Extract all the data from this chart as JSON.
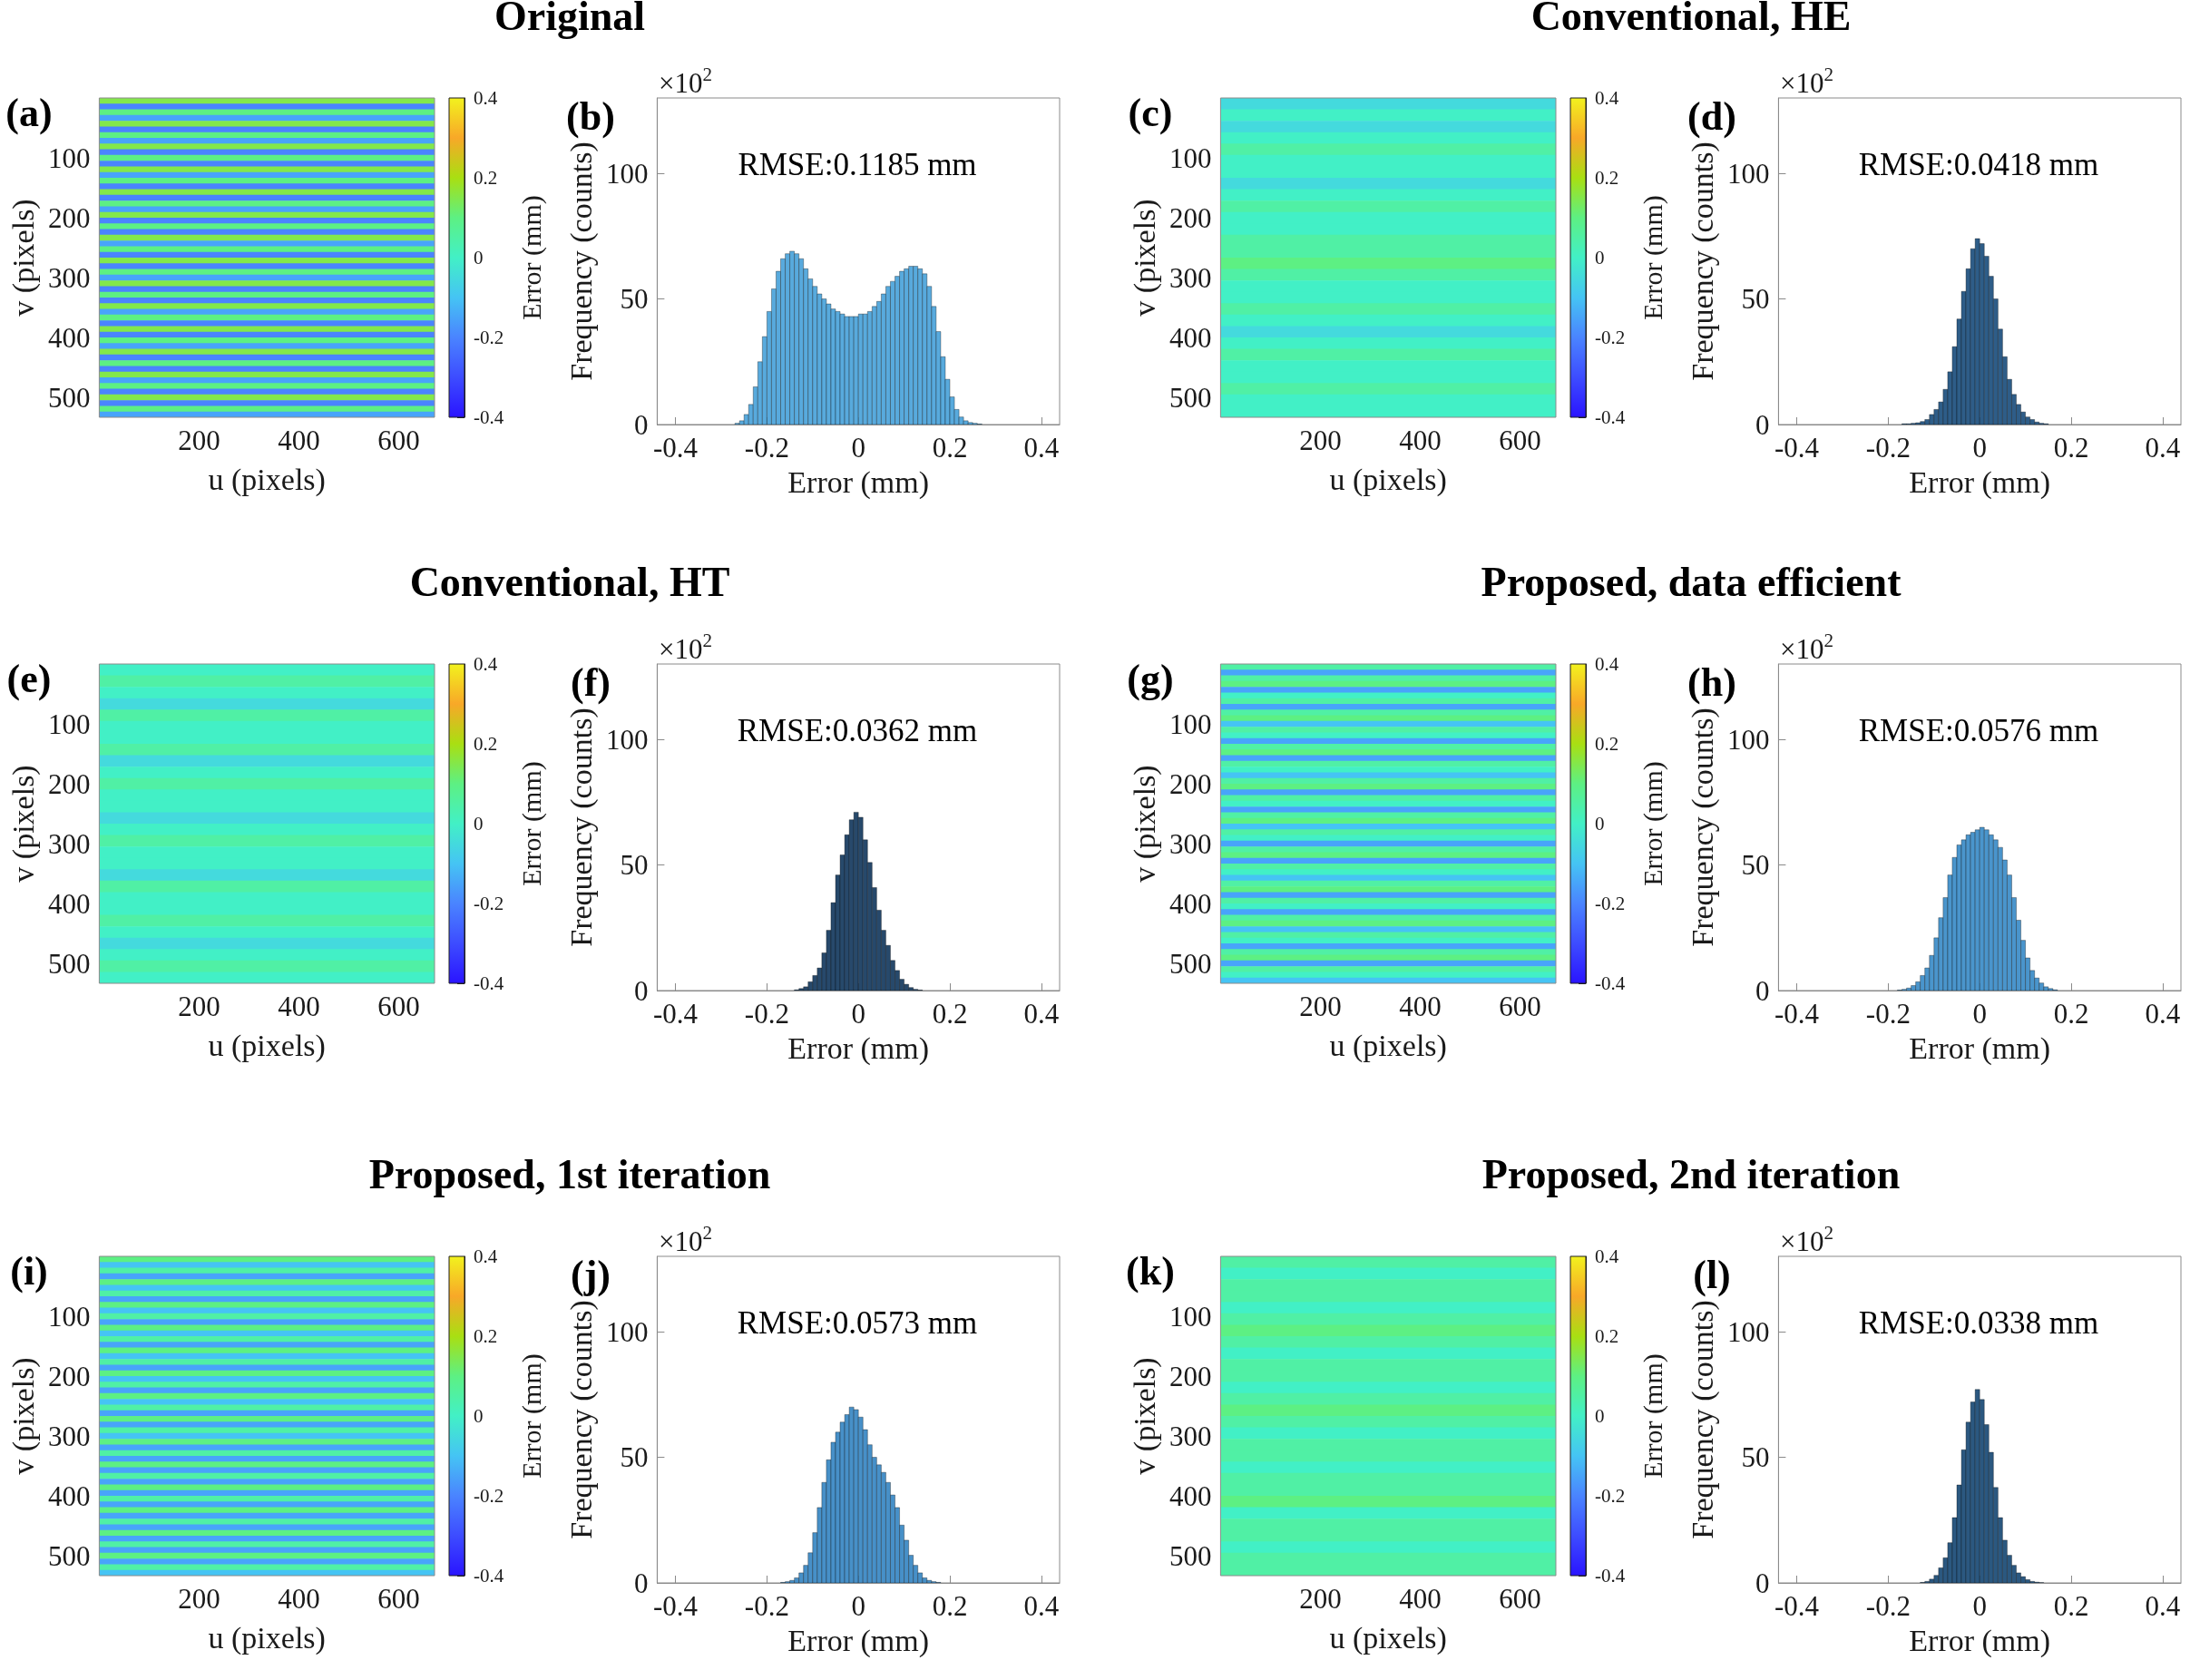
{
  "chart_data": [
    {
      "type": "heatmap",
      "xlabel": "u (pixels)",
      "ylabel": "v (pixels)",
      "clabel": "Error (mm)",
      "xlim": [
        0,
        672
      ],
      "ylim": [
        532,
        0
      ],
      "xticks": [
        200,
        400,
        600
      ],
      "yticks": [
        100,
        200,
        300,
        400,
        500
      ],
      "clim": [
        -0.4,
        0.4
      ],
      "cticks": [
        -0.4,
        -0.2,
        0,
        0.2,
        0.4
      ],
      "annotations": [
        "(a)"
      ],
      "cells": [
        [
          0.15
        ],
        [
          -0.2
        ],
        [
          0.1
        ],
        [
          -0.15
        ],
        [
          0.15
        ],
        [
          -0.2
        ],
        [
          0.1
        ],
        [
          -0.15
        ],
        [
          0.15
        ],
        [
          -0.2
        ],
        [
          0.1
        ],
        [
          -0.2
        ],
        [
          0.15
        ],
        [
          -0.15
        ],
        [
          0.1
        ],
        [
          -0.2
        ],
        [
          0.15
        ],
        [
          -0.2
        ],
        [
          0.1
        ],
        [
          -0.15
        ],
        [
          0.15
        ],
        [
          -0.2
        ],
        [
          0.1
        ],
        [
          -0.2
        ],
        [
          0.15
        ],
        [
          -0.15
        ],
        [
          0.1
        ],
        [
          -0.2
        ],
        [
          0.15
        ],
        [
          -0.2
        ],
        [
          0.1
        ],
        [
          -0.15
        ],
        [
          0.15
        ],
        [
          -0.2
        ],
        [
          0.1
        ],
        [
          -0.2
        ],
        [
          0.15
        ],
        [
          -0.15
        ],
        [
          0.1
        ],
        [
          -0.2
        ],
        [
          0.15
        ],
        [
          -0.2
        ],
        [
          0.1
        ],
        [
          -0.15
        ],
        [
          0.15
        ],
        [
          -0.2
        ],
        [
          0.1
        ],
        [
          -0.2
        ],
        [
          0.15
        ],
        [
          -0.15
        ],
        [
          0.1
        ],
        [
          -0.2
        ],
        [
          0.15
        ],
        [
          -0.2
        ],
        [
          0.1
        ],
        [
          -0.15
        ]
      ]
    },
    {
      "type": "histogram",
      "title": "Original",
      "xlabel": "Error (mm)",
      "ylabel": "Frequency (counts)",
      "color": "#58aadd",
      "xlim": [
        -0.44,
        0.44
      ],
      "xticks": [
        -0.4,
        -0.2,
        0,
        0.2,
        0.4
      ],
      "ylim": [
        0,
        130
      ],
      "yticks": [
        0,
        50,
        100
      ],
      "annotations": [
        "(b)",
        "×10$^{2}$",
        "RMSE:0.1185 mm"
      ],
      "bins": [
        -0.27,
        -0.26,
        -0.25,
        -0.24,
        -0.23,
        -0.22,
        -0.21,
        -0.2,
        -0.19,
        -0.18,
        -0.17,
        -0.16,
        -0.15,
        -0.14,
        -0.13,
        -0.12,
        -0.11,
        -0.1,
        -0.09,
        -0.08,
        -0.07,
        -0.06,
        -0.05,
        -0.04,
        -0.03,
        -0.02,
        -0.01,
        0,
        0.01,
        0.02,
        0.03,
        0.04,
        0.05,
        0.06,
        0.07,
        0.08,
        0.09,
        0.1,
        0.11,
        0.12,
        0.13,
        0.14,
        0.15,
        0.16,
        0.17,
        0.18,
        0.19,
        0.2,
        0.21,
        0.22,
        0.23,
        0.24,
        0.25,
        0.26,
        0.27
      ],
      "values": [
        0.5,
        1.5,
        4,
        8,
        15,
        25,
        35,
        45,
        54,
        61,
        66,
        68,
        69,
        68,
        66,
        62,
        58,
        55,
        52,
        50,
        48,
        46,
        45,
        44,
        43,
        43,
        43,
        44,
        44,
        45,
        47,
        49,
        52,
        55,
        57,
        59,
        61,
        62,
        63,
        63,
        62,
        60,
        55,
        47,
        37,
        27,
        18,
        11,
        6,
        3,
        1.5,
        0.8,
        0.5,
        0.2
      ]
    },
    {
      "type": "heatmap",
      "xlabel": "u (pixels)",
      "ylabel": "v (pixels)",
      "clabel": "Error (mm)",
      "xlim": [
        0,
        672
      ],
      "ylim": [
        532,
        0
      ],
      "xticks": [
        200,
        400,
        600
      ],
      "yticks": [
        100,
        200,
        300,
        400,
        500
      ],
      "clim": [
        -0.4,
        0.4
      ],
      "cticks": [
        -0.4,
        -0.2,
        0,
        0.2,
        0.4
      ],
      "annotations": [
        "(c)"
      ],
      "cells": [
        [
          -0.05
        ],
        [
          0
        ],
        [
          -0.05
        ],
        [
          0
        ],
        [
          0.05
        ],
        [
          0
        ],
        [
          0
        ],
        [
          -0.05
        ],
        [
          0
        ],
        [
          0.05
        ],
        [
          0
        ],
        [
          0
        ],
        [
          0.05
        ],
        [
          0.05
        ],
        [
          0.1
        ],
        [
          0.05
        ],
        [
          0
        ],
        [
          0
        ],
        [
          0.05
        ],
        [
          0
        ],
        [
          -0.05
        ],
        [
          0
        ],
        [
          0.05
        ],
        [
          0
        ],
        [
          0
        ],
        [
          0.05
        ],
        [
          0
        ],
        [
          0
        ]
      ]
    },
    {
      "type": "histogram",
      "title": "Conventional, HE",
      "xlabel": "Error (mm)",
      "ylabel": "Frequency (counts)",
      "color": "#2e5d88",
      "xlim": [
        -0.44,
        0.44
      ],
      "xticks": [
        -0.4,
        -0.2,
        0,
        0.2,
        0.4
      ],
      "ylim": [
        0,
        130
      ],
      "yticks": [
        0,
        50,
        100
      ],
      "annotations": [
        "(d)",
        "×10$^{2}$",
        "RMSE:0.0418 mm"
      ],
      "bins": [
        -0.17,
        -0.16,
        -0.15,
        -0.14,
        -0.13,
        -0.12,
        -0.11,
        -0.1,
        -0.09,
        -0.08,
        -0.07,
        -0.06,
        -0.05,
        -0.04,
        -0.03,
        -0.02,
        -0.01,
        0,
        0.01,
        0.02,
        0.03,
        0.04,
        0.05,
        0.06,
        0.07,
        0.08,
        0.09,
        0.1,
        0.11,
        0.12,
        0.13,
        0.14,
        0.15
      ],
      "values": [
        0.3,
        0.3,
        0.5,
        0.7,
        1.2,
        2,
        4,
        6,
        9,
        14,
        21,
        31,
        42,
        53,
        62,
        70,
        74,
        72,
        67,
        59,
        50,
        38,
        27,
        18,
        12,
        8,
        5,
        3,
        2,
        1,
        0.5,
        0.3
      ]
    },
    {
      "type": "heatmap",
      "xlabel": "u (pixels)",
      "ylabel": "v (pixels)",
      "clabel": "Error (mm)",
      "xlim": [
        0,
        672
      ],
      "ylim": [
        532,
        0
      ],
      "xticks": [
        200,
        400,
        600
      ],
      "yticks": [
        100,
        200,
        300,
        400,
        500
      ],
      "clim": [
        -0.4,
        0.4
      ],
      "cticks": [
        -0.4,
        -0.2,
        0,
        0.2,
        0.4
      ],
      "annotations": [
        "(e)"
      ],
      "cells": [
        [
          0
        ],
        [
          0.05
        ],
        [
          0
        ],
        [
          -0.05
        ],
        [
          0.05
        ],
        [
          0
        ],
        [
          0
        ],
        [
          0.05
        ],
        [
          -0.05
        ],
        [
          0
        ],
        [
          0.05
        ],
        [
          0
        ],
        [
          0
        ],
        [
          -0.05
        ],
        [
          0
        ],
        [
          0.05
        ],
        [
          0
        ],
        [
          0
        ],
        [
          -0.05
        ],
        [
          0.05
        ],
        [
          0
        ],
        [
          0
        ],
        [
          0.05
        ],
        [
          0
        ],
        [
          -0.05
        ],
        [
          0
        ],
        [
          0.05
        ],
        [
          0
        ]
      ]
    },
    {
      "type": "histogram",
      "title": "Conventional, HT",
      "xlabel": "Error (mm)",
      "ylabel": "Frequency (counts)",
      "color": "#27496b",
      "xlim": [
        -0.44,
        0.44
      ],
      "xticks": [
        -0.4,
        -0.2,
        0,
        0.2,
        0.4
      ],
      "ylim": [
        0,
        130
      ],
      "yticks": [
        0,
        50,
        100
      ],
      "annotations": [
        "(f)",
        "×10$^{2}$",
        "RMSE:0.0362 mm"
      ],
      "bins": [
        -0.14,
        -0.13,
        -0.12,
        -0.11,
        -0.1,
        -0.09,
        -0.08,
        -0.07,
        -0.06,
        -0.05,
        -0.04,
        -0.03,
        -0.02,
        -0.01,
        0,
        0.01,
        0.02,
        0.03,
        0.04,
        0.05,
        0.06,
        0.07,
        0.08,
        0.09,
        0.1,
        0.11,
        0.12,
        0.13,
        0.14
      ],
      "values": [
        0.3,
        0.8,
        1.5,
        3.5,
        6,
        9,
        15,
        24,
        35,
        46,
        54,
        62,
        68,
        71,
        69,
        60,
        51,
        41,
        32,
        24,
        18,
        12,
        8,
        4.5,
        2.5,
        1.2,
        0.5,
        0.2
      ]
    },
    {
      "type": "heatmap",
      "xlabel": "u (pixels)",
      "ylabel": "v (pixels)",
      "clabel": "Error (mm)",
      "xlim": [
        0,
        672
      ],
      "ylim": [
        532,
        0
      ],
      "xticks": [
        200,
        400,
        600
      ],
      "yticks": [
        100,
        200,
        300,
        400,
        500
      ],
      "clim": [
        -0.4,
        0.4
      ],
      "cticks": [
        -0.4,
        -0.2,
        0,
        0.2,
        0.4
      ],
      "annotations": [
        "(g)"
      ],
      "cells": [
        [
          0.05
        ],
        [
          -0.15
        ],
        [
          0.05
        ],
        [
          0.1
        ],
        [
          -0.15
        ],
        [
          0
        ],
        [
          0.05
        ],
        [
          -0.15
        ],
        [
          0.05
        ],
        [
          0.1
        ],
        [
          -0.1
        ],
        [
          0.05
        ],
        [
          0
        ],
        [
          -0.15
        ],
        [
          0.05
        ],
        [
          0.1
        ],
        [
          -0.15
        ],
        [
          0.05
        ],
        [
          0
        ],
        [
          -0.1
        ],
        [
          0.05
        ],
        [
          0.1
        ],
        [
          -0.15
        ],
        [
          0.05
        ],
        [
          0
        ],
        [
          -0.15
        ],
        [
          0.05
        ],
        [
          0.1
        ],
        [
          -0.1
        ],
        [
          0.05
        ],
        [
          0
        ],
        [
          -0.15
        ],
        [
          0.05
        ],
        [
          0.1
        ],
        [
          -0.15
        ],
        [
          0.05
        ],
        [
          0
        ],
        [
          -0.1
        ],
        [
          0.05
        ],
        [
          0.1
        ],
        [
          -0.15
        ],
        [
          0.05
        ],
        [
          0
        ],
        [
          -0.15
        ],
        [
          0.05
        ],
        [
          0.1
        ],
        [
          -0.1
        ],
        [
          0.05
        ],
        [
          0
        ],
        [
          -0.15
        ],
        [
          0.05
        ],
        [
          0.1
        ],
        [
          -0.15
        ],
        [
          0.05
        ],
        [
          0
        ],
        [
          -0.1
        ]
      ]
    },
    {
      "type": "histogram",
      "title": "Proposed, data efficient",
      "xlabel": "Error (mm)",
      "ylabel": "Frequency (counts)",
      "color": "#4a95cc",
      "xlim": [
        -0.44,
        0.44
      ],
      "xticks": [
        -0.4,
        -0.2,
        0,
        0.2,
        0.4
      ],
      "ylim": [
        0,
        130
      ],
      "yticks": [
        0,
        50,
        100
      ],
      "annotations": [
        "(h)",
        "×10$^{2}$",
        "RMSE:0.0576 mm"
      ],
      "bins": [
        -0.18,
        -0.17,
        -0.16,
        -0.15,
        -0.14,
        -0.13,
        -0.12,
        -0.11,
        -0.1,
        -0.09,
        -0.08,
        -0.07,
        -0.06,
        -0.05,
        -0.04,
        -0.03,
        -0.02,
        -0.01,
        0,
        0.01,
        0.02,
        0.03,
        0.04,
        0.05,
        0.06,
        0.07,
        0.08,
        0.09,
        0.1,
        0.11,
        0.12,
        0.13,
        0.14,
        0.15,
        0.16,
        0.17
      ],
      "values": [
        0.2,
        0.5,
        1,
        2,
        3.5,
        6,
        9,
        14,
        21,
        29,
        37,
        46,
        53,
        58,
        60,
        62,
        63,
        64,
        65,
        64,
        62,
        60,
        57,
        52,
        46,
        37,
        28,
        20,
        13,
        8,
        5,
        3,
        1.5,
        0.8,
        0.3
      ]
    },
    {
      "type": "heatmap",
      "xlabel": "u (pixels)",
      "ylabel": "v (pixels)",
      "clabel": "Error (mm)",
      "xlim": [
        0,
        672
      ],
      "ylim": [
        532,
        0
      ],
      "xticks": [
        200,
        400,
        600
      ],
      "yticks": [
        100,
        200,
        300,
        400,
        500
      ],
      "clim": [
        -0.4,
        0.4
      ],
      "cticks": [
        -0.4,
        -0.2,
        0,
        0.2,
        0.4
      ],
      "annotations": [
        "(i)"
      ],
      "cells": [
        [
          0.1
        ],
        [
          -0.1
        ],
        [
          0.05
        ],
        [
          -0.15
        ],
        [
          0.1
        ],
        [
          -0.1
        ],
        [
          0.05
        ],
        [
          -0.15
        ],
        [
          0.1
        ],
        [
          -0.1
        ],
        [
          0.05
        ],
        [
          -0.15
        ],
        [
          0.1
        ],
        [
          -0.1
        ],
        [
          0.05
        ],
        [
          -0.15
        ],
        [
          0.1
        ],
        [
          -0.1
        ],
        [
          0.05
        ],
        [
          -0.15
        ],
        [
          0.1
        ],
        [
          -0.1
        ],
        [
          0.05
        ],
        [
          -0.15
        ],
        [
          0.1
        ],
        [
          -0.1
        ],
        [
          0.05
        ],
        [
          -0.15
        ],
        [
          0.1
        ],
        [
          -0.15
        ],
        [
          0.05
        ],
        [
          -0.1
        ],
        [
          0.1
        ],
        [
          -0.15
        ],
        [
          0.05
        ],
        [
          -0.15
        ],
        [
          0.1
        ],
        [
          -0.15
        ],
        [
          0.05
        ],
        [
          -0.15
        ],
        [
          0.1
        ],
        [
          -0.15
        ],
        [
          0.05
        ],
        [
          -0.15
        ],
        [
          0.1
        ],
        [
          -0.15
        ],
        [
          0.05
        ],
        [
          -0.15
        ],
        [
          0.1
        ],
        [
          -0.15
        ],
        [
          0.05
        ],
        [
          -0.15
        ],
        [
          0.1
        ],
        [
          -0.15
        ],
        [
          0.05
        ],
        [
          -0.1
        ]
      ]
    },
    {
      "type": "histogram",
      "title": "Proposed, 1st iteration",
      "xlabel": "Error (mm)",
      "ylabel": "Frequency (counts)",
      "color": "#4790c8",
      "xlim": [
        -0.44,
        0.44
      ],
      "xticks": [
        -0.4,
        -0.2,
        0,
        0.2,
        0.4
      ],
      "ylim": [
        0,
        130
      ],
      "yticks": [
        0,
        50,
        100
      ],
      "annotations": [
        "(j)",
        "×10$^{2}$",
        "RMSE:0.0573 mm"
      ],
      "bins": [
        -0.17,
        -0.16,
        -0.15,
        -0.14,
        -0.13,
        -0.12,
        -0.11,
        -0.1,
        -0.09,
        -0.08,
        -0.07,
        -0.06,
        -0.05,
        -0.04,
        -0.03,
        -0.02,
        -0.01,
        0,
        0.01,
        0.02,
        0.03,
        0.04,
        0.05,
        0.06,
        0.07,
        0.08,
        0.09,
        0.1,
        0.11,
        0.12,
        0.13,
        0.14,
        0.15,
        0.16,
        0.17,
        0.18
      ],
      "values": [
        0.2,
        0.5,
        1,
        2,
        4,
        7,
        12,
        20,
        30,
        40,
        49,
        56,
        60,
        64,
        67,
        70,
        69,
        66,
        61,
        55,
        50,
        47,
        44,
        40,
        35,
        30,
        23,
        17,
        11,
        7,
        4,
        2,
        1,
        0.5,
        0.2
      ]
    },
    {
      "type": "heatmap",
      "xlabel": "u (pixels)",
      "ylabel": "v (pixels)",
      "clabel": "Error (mm)",
      "xlim": [
        0,
        672
      ],
      "ylim": [
        532,
        0
      ],
      "xticks": [
        200,
        400,
        600
      ],
      "yticks": [
        100,
        200,
        300,
        400,
        500
      ],
      "clim": [
        -0.4,
        0.4
      ],
      "cticks": [
        -0.4,
        -0.2,
        0,
        0.2,
        0.4
      ],
      "annotations": [
        "(k)"
      ],
      "cells": [
        [
          0.05
        ],
        [
          0
        ],
        [
          0.05
        ],
        [
          0.05
        ],
        [
          0
        ],
        [
          0.05
        ],
        [
          0.1
        ],
        [
          0.05
        ],
        [
          0
        ],
        [
          0.05
        ],
        [
          0.05
        ],
        [
          0
        ],
        [
          0.05
        ],
        [
          0.1
        ],
        [
          0.05
        ],
        [
          0
        ],
        [
          0.05
        ],
        [
          0.05
        ],
        [
          0
        ],
        [
          0.05
        ],
        [
          0.05
        ],
        [
          0.1
        ],
        [
          0
        ],
        [
          0.05
        ],
        [
          0.05
        ],
        [
          0
        ],
        [
          0.05
        ],
        [
          0.05
        ]
      ]
    },
    {
      "type": "histogram",
      "title": "Proposed, 2nd iteration",
      "xlabel": "Error (mm)",
      "ylabel": "Frequency (counts)",
      "color": "#2b5880",
      "xlim": [
        -0.44,
        0.44
      ],
      "xticks": [
        -0.4,
        -0.2,
        0,
        0.2,
        0.4
      ],
      "ylim": [
        0,
        130
      ],
      "yticks": [
        0,
        50,
        100
      ],
      "annotations": [
        "(l)",
        "×10$^{2}$",
        "RMSE:0.0338 mm"
      ],
      "bins": [
        -0.13,
        -0.12,
        -0.11,
        -0.1,
        -0.09,
        -0.08,
        -0.07,
        -0.06,
        -0.05,
        -0.04,
        -0.03,
        -0.02,
        -0.01,
        0,
        0.01,
        0.02,
        0.03,
        0.04,
        0.05,
        0.06,
        0.07,
        0.08,
        0.09,
        0.1,
        0.11,
        0.12,
        0.13,
        0.14
      ],
      "values": [
        0.2,
        0.6,
        1.5,
        3,
        6,
        10,
        16,
        26,
        39,
        53,
        64,
        72,
        77,
        73,
        63,
        52,
        38,
        26,
        17,
        11,
        7,
        4,
        2.5,
        1.3,
        0.6,
        0.3,
        0.1
      ]
    }
  ]
}
